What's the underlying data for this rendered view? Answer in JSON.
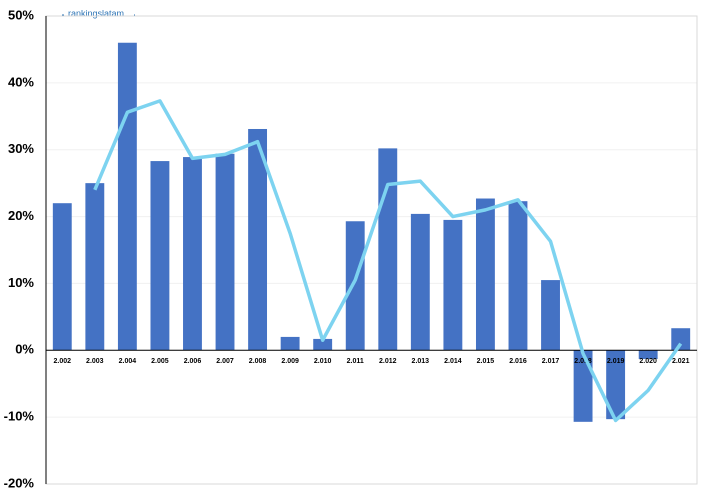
{
  "chart_data": {
    "type": "bar-line",
    "watermark": "rankingslatam",
    "categories": [
      "2.002",
      "2.003",
      "2.004",
      "2.005",
      "2.006",
      "2.007",
      "2.008",
      "2.009",
      "2.010",
      "2.011",
      "2.012",
      "2.013",
      "2.014",
      "2.015",
      "2.016",
      "2.017",
      "2.018",
      "2.019",
      "2.020",
      "2.021"
    ],
    "series": [
      {
        "type": "bar",
        "color": "#4472c4",
        "values": [
          22,
          25,
          46,
          28.3,
          28.9,
          29.4,
          33.1,
          2,
          1.7,
          19.3,
          30.2,
          20.4,
          19.5,
          22.7,
          22.3,
          10.5,
          -10.7,
          -10.3,
          -1.3,
          3.3
        ]
      },
      {
        "type": "line",
        "color": "#7dd3f0",
        "values": [
          null,
          24,
          35.6,
          37.3,
          28.7,
          29.3,
          31.2,
          17.5,
          1.5,
          10.5,
          24.8,
          25.3,
          20,
          21,
          22.5,
          16.3,
          -0.5,
          -10.5,
          -6,
          1
        ]
      }
    ],
    "ylim": [
      -20,
      50
    ],
    "yticks": [
      {
        "value": -20,
        "label": "-20%"
      },
      {
        "value": -10,
        "label": "-10%"
      },
      {
        "value": 0,
        "label": "0%"
      },
      {
        "value": 10,
        "label": "10%"
      },
      {
        "value": 20,
        "label": "20%"
      },
      {
        "value": 30,
        "label": "30%"
      },
      {
        "value": 40,
        "label": "40%"
      },
      {
        "value": 50,
        "label": "50%"
      }
    ],
    "grid": true
  }
}
